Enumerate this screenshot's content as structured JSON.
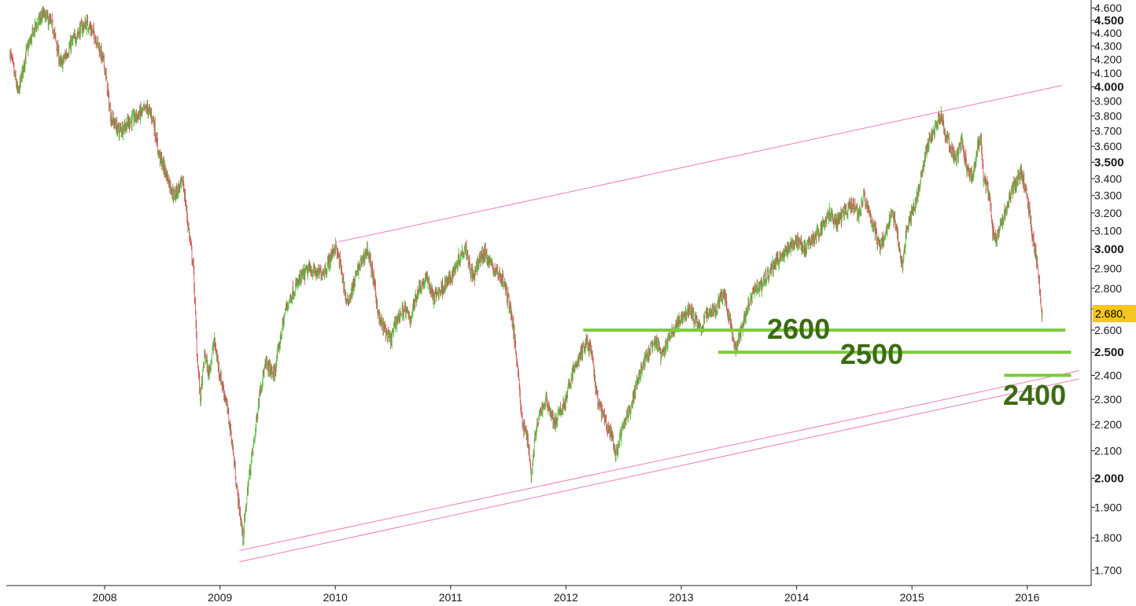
{
  "chart_data": {
    "type": "line",
    "style": "candlestick",
    "title": "",
    "xlabel": "",
    "ylabel": "",
    "x_range": [
      2007.18,
      2016.43
    ],
    "ylim": [
      1640,
      4640
    ],
    "y_scale": "log",
    "grid": false,
    "x_ticks": [
      "2008",
      "2009",
      "2010",
      "2011",
      "2012",
      "2013",
      "2014",
      "2015",
      "2016"
    ],
    "y_ticks": [
      {
        "label": "1.700",
        "value": 1700,
        "bold": false
      },
      {
        "label": "1.800",
        "value": 1800,
        "bold": false
      },
      {
        "label": "1.900",
        "value": 1900,
        "bold": false
      },
      {
        "label": "2.000",
        "value": 2000,
        "bold": true
      },
      {
        "label": "2.100",
        "value": 2100,
        "bold": false
      },
      {
        "label": "2.200",
        "value": 2200,
        "bold": false
      },
      {
        "label": "2.300",
        "value": 2300,
        "bold": false
      },
      {
        "label": "2.400",
        "value": 2400,
        "bold": false
      },
      {
        "label": "2.500",
        "value": 2500,
        "bold": true
      },
      {
        "label": "2.600",
        "value": 2600,
        "bold": false
      },
      {
        "label": "2.700",
        "value": 2700,
        "bold": false
      },
      {
        "label": "2.800",
        "value": 2800,
        "bold": false
      },
      {
        "label": "2.900",
        "value": 2900,
        "bold": false
      },
      {
        "label": "3.000",
        "value": 3000,
        "bold": true
      },
      {
        "label": "3.100",
        "value": 3100,
        "bold": false
      },
      {
        "label": "3.200",
        "value": 3200,
        "bold": false
      },
      {
        "label": "3.300",
        "value": 3300,
        "bold": false
      },
      {
        "label": "3.400",
        "value": 3400,
        "bold": false
      },
      {
        "label": "3.500",
        "value": 3500,
        "bold": true
      },
      {
        "label": "3.600",
        "value": 3600,
        "bold": false
      },
      {
        "label": "3.700",
        "value": 3700,
        "bold": false
      },
      {
        "label": "3.800",
        "value": 3800,
        "bold": false
      },
      {
        "label": "3.900",
        "value": 3900,
        "bold": false
      },
      {
        "label": "4.000",
        "value": 4000,
        "bold": true
      },
      {
        "label": "4.100",
        "value": 4100,
        "bold": false
      },
      {
        "label": "4.200",
        "value": 4200,
        "bold": false
      },
      {
        "label": "4.300",
        "value": 4300,
        "bold": false
      },
      {
        "label": "4.400",
        "value": 4400,
        "bold": false
      },
      {
        "label": "4.500",
        "value": 4500,
        "bold": true
      },
      {
        "label": "4.600",
        "value": 4600,
        "bold": false
      }
    ],
    "last_price_label": "2.680,",
    "price_path": [
      [
        2007.18,
        4250
      ],
      [
        2007.25,
        3950
      ],
      [
        2007.32,
        4250
      ],
      [
        2007.4,
        4450
      ],
      [
        2007.47,
        4550
      ],
      [
        2007.55,
        4450
      ],
      [
        2007.62,
        4150
      ],
      [
        2007.7,
        4300
      ],
      [
        2007.78,
        4420
      ],
      [
        2007.85,
        4480
      ],
      [
        2007.93,
        4350
      ],
      [
        2008.0,
        4150
      ],
      [
        2008.05,
        3800
      ],
      [
        2008.12,
        3700
      ],
      [
        2008.2,
        3750
      ],
      [
        2008.28,
        3800
      ],
      [
        2008.37,
        3850
      ],
      [
        2008.42,
        3780
      ],
      [
        2008.47,
        3550
      ],
      [
        2008.55,
        3400
      ],
      [
        2008.6,
        3300
      ],
      [
        2008.68,
        3380
      ],
      [
        2008.72,
        3150
      ],
      [
        2008.77,
        2900
      ],
      [
        2008.8,
        2500
      ],
      [
        2008.83,
        2300
      ],
      [
        2008.87,
        2500
      ],
      [
        2008.9,
        2400
      ],
      [
        2008.95,
        2550
      ],
      [
        2009.0,
        2400
      ],
      [
        2009.05,
        2300
      ],
      [
        2009.1,
        2150
      ],
      [
        2009.15,
        1950
      ],
      [
        2009.2,
        1800
      ],
      [
        2009.25,
        2000
      ],
      [
        2009.3,
        2150
      ],
      [
        2009.35,
        2350
      ],
      [
        2009.4,
        2450
      ],
      [
        2009.47,
        2400
      ],
      [
        2009.52,
        2550
      ],
      [
        2009.57,
        2700
      ],
      [
        2009.63,
        2780
      ],
      [
        2009.7,
        2850
      ],
      [
        2009.78,
        2900
      ],
      [
        2009.85,
        2870
      ],
      [
        2009.92,
        2900
      ],
      [
        2010.0,
        3020
      ],
      [
        2010.05,
        2900
      ],
      [
        2010.1,
        2720
      ],
      [
        2010.15,
        2800
      ],
      [
        2010.2,
        2900
      ],
      [
        2010.28,
        3000
      ],
      [
        2010.33,
        2850
      ],
      [
        2010.38,
        2650
      ],
      [
        2010.43,
        2600
      ],
      [
        2010.48,
        2550
      ],
      [
        2010.53,
        2650
      ],
      [
        2010.6,
        2700
      ],
      [
        2010.65,
        2650
      ],
      [
        2010.72,
        2800
      ],
      [
        2010.8,
        2850
      ],
      [
        2010.85,
        2750
      ],
      [
        2010.92,
        2800
      ],
      [
        2011.0,
        2850
      ],
      [
        2011.07,
        2950
      ],
      [
        2011.13,
        3020
      ],
      [
        2011.17,
        2900
      ],
      [
        2011.2,
        2850
      ],
      [
        2011.25,
        2950
      ],
      [
        2011.3,
        2980
      ],
      [
        2011.37,
        2900
      ],
      [
        2011.45,
        2850
      ],
      [
        2011.52,
        2700
      ],
      [
        2011.58,
        2450
      ],
      [
        2011.62,
        2200
      ],
      [
        2011.67,
        2150
      ],
      [
        2011.7,
        2000
      ],
      [
        2011.73,
        2150
      ],
      [
        2011.78,
        2250
      ],
      [
        2011.83,
        2300
      ],
      [
        2011.9,
        2200
      ],
      [
        2011.95,
        2250
      ],
      [
        2012.0,
        2300
      ],
      [
        2012.05,
        2400
      ],
      [
        2012.12,
        2480
      ],
      [
        2012.18,
        2550
      ],
      [
        2012.22,
        2500
      ],
      [
        2012.27,
        2300
      ],
      [
        2012.35,
        2200
      ],
      [
        2012.4,
        2150
      ],
      [
        2012.43,
        2080
      ],
      [
        2012.47,
        2150
      ],
      [
        2012.52,
        2220
      ],
      [
        2012.58,
        2300
      ],
      [
        2012.63,
        2400
      ],
      [
        2012.7,
        2480
      ],
      [
        2012.78,
        2550
      ],
      [
        2012.83,
        2480
      ],
      [
        2012.88,
        2550
      ],
      [
        2012.93,
        2600
      ],
      [
        2013.0,
        2650
      ],
      [
        2013.07,
        2700
      ],
      [
        2013.12,
        2650
      ],
      [
        2013.17,
        2600
      ],
      [
        2013.22,
        2680
      ],
      [
        2013.3,
        2700
      ],
      [
        2013.37,
        2780
      ],
      [
        2013.42,
        2650
      ],
      [
        2013.47,
        2500
      ],
      [
        2013.52,
        2600
      ],
      [
        2013.57,
        2700
      ],
      [
        2013.63,
        2800
      ],
      [
        2013.7,
        2820
      ],
      [
        2013.78,
        2900
      ],
      [
        2013.85,
        2950
      ],
      [
        2013.92,
        3000
      ],
      [
        2014.0,
        3050
      ],
      [
        2014.08,
        3000
      ],
      [
        2014.13,
        3050
      ],
      [
        2014.2,
        3100
      ],
      [
        2014.28,
        3200
      ],
      [
        2014.35,
        3150
      ],
      [
        2014.42,
        3200
      ],
      [
        2014.48,
        3250
      ],
      [
        2014.55,
        3200
      ],
      [
        2014.58,
        3300
      ],
      [
        2014.63,
        3200
      ],
      [
        2014.68,
        3100
      ],
      [
        2014.72,
        3000
      ],
      [
        2014.78,
        3100
      ],
      [
        2014.83,
        3200
      ],
      [
        2014.87,
        3100
      ],
      [
        2014.92,
        2900
      ],
      [
        2014.95,
        3100
      ],
      [
        2015.0,
        3200
      ],
      [
        2015.05,
        3300
      ],
      [
        2015.1,
        3500
      ],
      [
        2015.15,
        3650
      ],
      [
        2015.2,
        3700
      ],
      [
        2015.25,
        3820
      ],
      [
        2015.28,
        3700
      ],
      [
        2015.33,
        3600
      ],
      [
        2015.38,
        3500
      ],
      [
        2015.43,
        3650
      ],
      [
        2015.48,
        3450
      ],
      [
        2015.52,
        3400
      ],
      [
        2015.57,
        3600
      ],
      [
        2015.6,
        3650
      ],
      [
        2015.62,
        3400
      ],
      [
        2015.67,
        3300
      ],
      [
        2015.7,
        3100
      ],
      [
        2015.73,
        3050
      ],
      [
        2015.78,
        3150
      ],
      [
        2015.83,
        3250
      ],
      [
        2015.88,
        3350
      ],
      [
        2015.92,
        3400
      ],
      [
        2015.95,
        3450
      ],
      [
        2015.98,
        3350
      ],
      [
        2016.02,
        3200
      ],
      [
        2016.05,
        3050
      ],
      [
        2016.08,
        2950
      ],
      [
        2016.1,
        2850
      ],
      [
        2016.12,
        2700
      ],
      [
        2016.13,
        2680
      ]
    ],
    "channel_lines": [
      {
        "name": "upper",
        "x": [
          2010.03,
          2016.3
        ],
        "y": [
          3040,
          4010
        ]
      },
      {
        "name": "lower-1",
        "x": [
          2009.17,
          2016.45
        ],
        "y": [
          1760,
          2420
        ]
      },
      {
        "name": "lower-2",
        "x": [
          2009.17,
          2016.45
        ],
        "y": [
          1725,
          2385
        ]
      }
    ],
    "levels": [
      {
        "value": 2600,
        "label": "2600",
        "x_start": 2012.15,
        "x_end": 2016.33
      },
      {
        "value": 2500,
        "label": "2500",
        "x_start": 2013.32,
        "x_end": 2016.38
      },
      {
        "value": 2400,
        "label": "2400",
        "x_start": 2015.8,
        "x_end": 2016.38
      }
    ],
    "colors": {
      "up": "#4cc23a",
      "down": "#d2555a",
      "channel": "#f07ab8",
      "level": "#7ccc3a",
      "level_label": "#3c6b14",
      "last_price_bg": "#f5c520"
    }
  }
}
